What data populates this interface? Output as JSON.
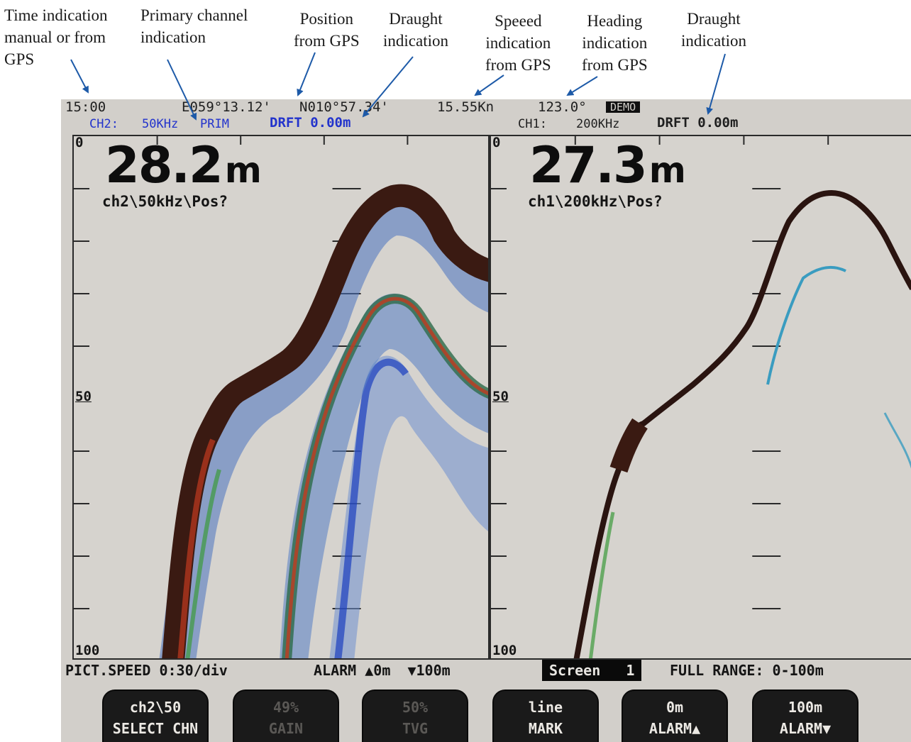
{
  "annotations": [
    {
      "id": "time",
      "text": "Time indication\nmanual or from\nGPS"
    },
    {
      "id": "primary",
      "text": "Primary channel\nindication"
    },
    {
      "id": "position",
      "text": "Position\nfrom GPS"
    },
    {
      "id": "draught1",
      "text": "Draught\nindication"
    },
    {
      "id": "speed",
      "text": "Speeed\nindication\nfrom GPS"
    },
    {
      "id": "heading",
      "text": "Heading\nindication\nfrom GPS"
    },
    {
      "id": "draught2",
      "text": "Draught\nindication"
    }
  ],
  "status": {
    "time": "15:00",
    "longitude": "E059°13.12'",
    "latitude": "N010°57.34'",
    "speed": "15.55Kn",
    "heading": "123.0°",
    "mode_badge": "DEMO"
  },
  "channels": {
    "left": {
      "label": "CH2:",
      "freq": "50KHz",
      "primary": "PRIM",
      "draught": "DRFT 0.00m"
    },
    "right": {
      "label": "CH1:",
      "freq": "200KHz",
      "draught": "DRFT 0.00m"
    }
  },
  "panels": {
    "left": {
      "depth": "28.2",
      "unit": "m",
      "info": "ch2\\50kHz\\Pos?",
      "scale_top": "0",
      "scale_mid": "50",
      "scale_bottom": "100"
    },
    "right": {
      "depth": "27.3",
      "unit": "m",
      "info": "ch1\\200kHz\\Pos?",
      "scale_top": "0",
      "scale_mid": "50",
      "scale_bottom": "100"
    }
  },
  "bottom_bar": {
    "pict_speed": "PICT.SPEED 0:30/div",
    "alarm": "ALARM ▲0m  ▼100m",
    "screen_label": "Screen   1",
    "full_range": "FULL RANGE: 0-100m"
  },
  "softkeys": [
    {
      "line1": "ch2\\50",
      "line2": "SELECT CHN",
      "enabled": true
    },
    {
      "line1": "49%",
      "line2": "GAIN",
      "enabled": false
    },
    {
      "line1": "50%",
      "line2": "TVG",
      "enabled": false
    },
    {
      "line1": "line",
      "line2": "MARK",
      "enabled": true
    },
    {
      "line1": "0m",
      "line2": "ALARM▲",
      "enabled": true
    },
    {
      "line1": "100m",
      "line2": "ALARM▼",
      "enabled": true
    }
  ],
  "colors": {
    "screen_bg": "#d2cfca",
    "echo_strong": "#3a1a12",
    "echo_red": "#c23b1f",
    "echo_green": "#3c9a3c",
    "echo_blue": "#1b3fbf",
    "echo_cyan": "#3a9cc0",
    "channel_text": "#2233cc",
    "arrow": "#1d5aa8"
  }
}
